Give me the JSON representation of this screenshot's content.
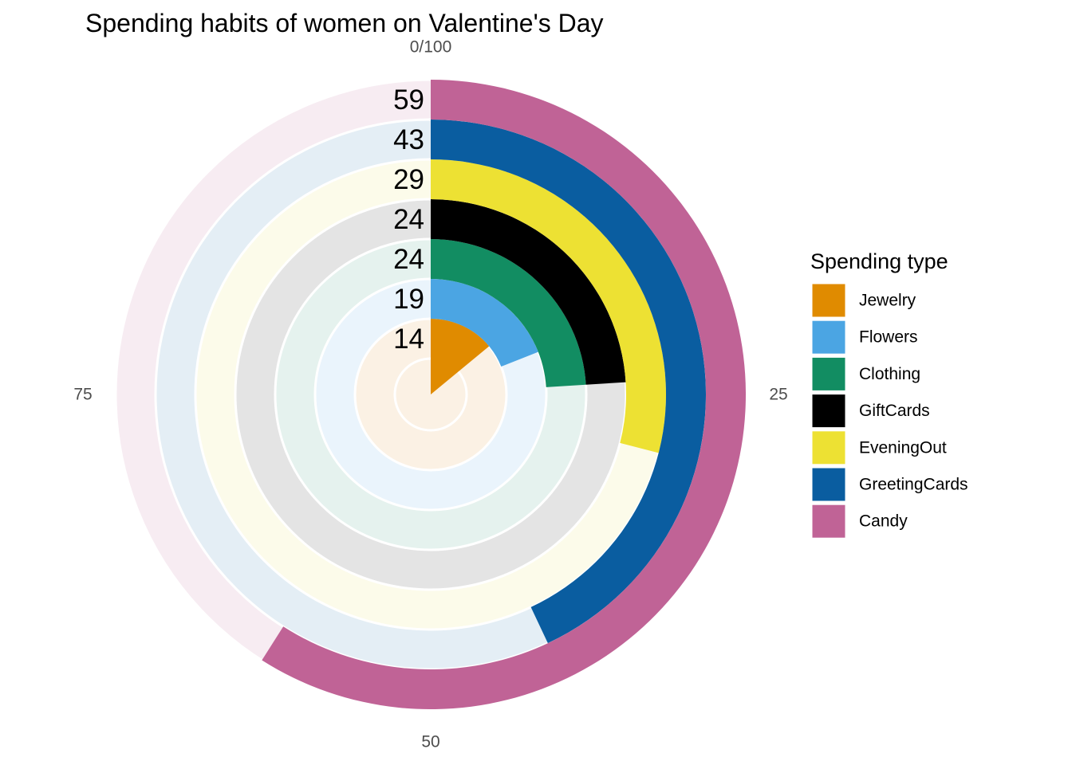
{
  "chart_data": {
    "type": "radial-bar",
    "title": "Spending habits of women on Valentine's Day",
    "axis": {
      "range": [
        0,
        100
      ],
      "ticks": [
        {
          "value": 0,
          "label": "0/100"
        },
        {
          "value": 25,
          "label": "25"
        },
        {
          "value": 50,
          "label": "50"
        },
        {
          "value": 75,
          "label": "75"
        }
      ]
    },
    "legend": {
      "title": "Spending type",
      "placement": "right"
    },
    "series": [
      {
        "name": "Jewelry",
        "value": 14,
        "color": "#E08B00",
        "track_color": "#FBF1E4"
      },
      {
        "name": "Flowers",
        "value": 19,
        "color": "#4BA5E3",
        "track_color": "#EAF4FC"
      },
      {
        "name": "Clothing",
        "value": 24,
        "color": "#128D62",
        "track_color": "#E5F2EE"
      },
      {
        "name": "GiftCards",
        "value": 24,
        "color": "#000000",
        "track_color": "#E4E4E4"
      },
      {
        "name": "EveningOut",
        "value": 29,
        "color": "#EDE133",
        "track_color": "#FCFBEA"
      },
      {
        "name": "GreetingCards",
        "value": 43,
        "color": "#0A5DA0",
        "track_color": "#E4EEF5"
      },
      {
        "name": "Candy",
        "value": 59,
        "color": "#C06396",
        "track_color": "#F7ECF2"
      }
    ]
  }
}
